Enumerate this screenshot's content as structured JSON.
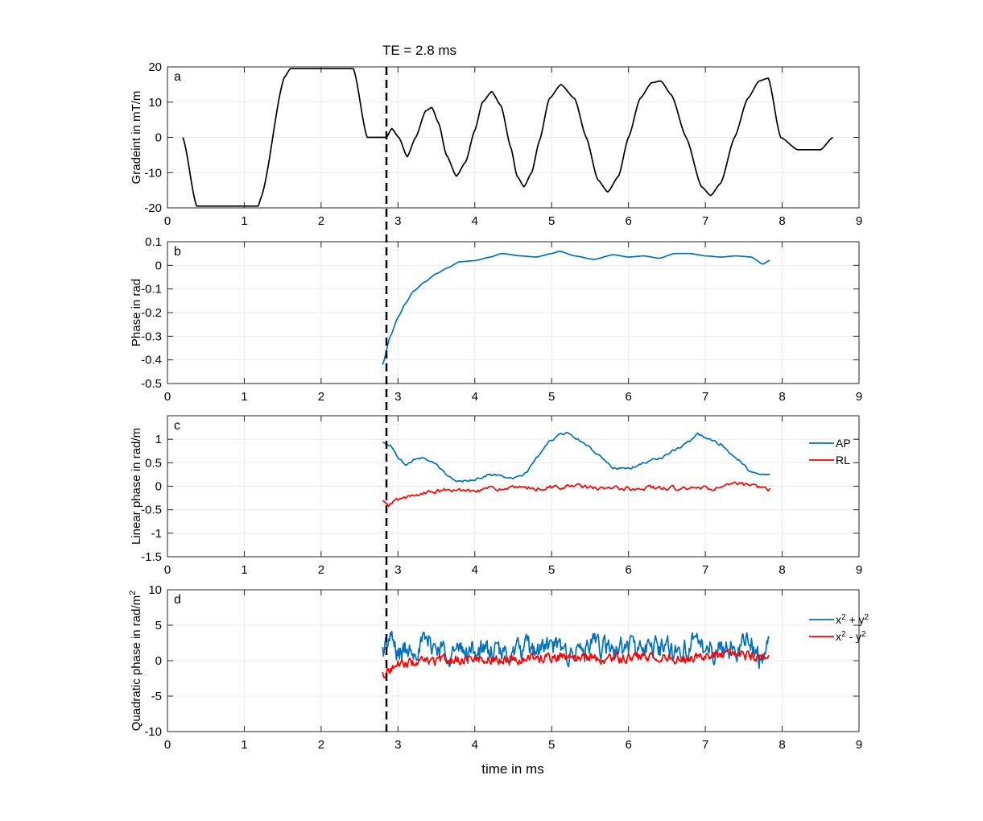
{
  "figure": {
    "te_annotation": "TE = 2.8 ms",
    "te_value": 2.85,
    "xlabel": "time in ms"
  },
  "chart_data": [
    {
      "type": "line",
      "panel": "a",
      "ylabel": "Gradeint in mT/m",
      "xlim": [
        0,
        9
      ],
      "ylim": [
        -20,
        20
      ],
      "xticks": [
        0,
        1,
        2,
        3,
        4,
        5,
        6,
        7,
        8,
        9
      ],
      "yticks": [
        -20,
        -10,
        0,
        10,
        20
      ],
      "grid": true,
      "series": [
        {
          "color": "#000000",
          "sampling": {
            "from": 0.2,
            "to": 8.66,
            "step": 0.01
          },
          "knots": [
            [
              0.2,
              0
            ],
            [
              0.38,
              -19.5
            ],
            [
              1.18,
              -19.5
            ],
            [
              1.22,
              -17
            ],
            [
              1.52,
              17
            ],
            [
              1.6,
              19.5
            ],
            [
              2.42,
              19.5
            ],
            [
              2.6,
              0
            ],
            [
              2.85,
              0
            ],
            [
              2.92,
              2.5
            ],
            [
              3.01,
              0
            ],
            [
              3.12,
              -5.5
            ],
            [
              3.23,
              0
            ],
            [
              3.36,
              7.5
            ],
            [
              3.44,
              8.5
            ],
            [
              3.53,
              4
            ],
            [
              3.63,
              -5
            ],
            [
              3.76,
              -11
            ],
            [
              3.88,
              -7
            ],
            [
              4.0,
              2
            ],
            [
              4.1,
              10
            ],
            [
              4.22,
              13
            ],
            [
              4.34,
              9
            ],
            [
              4.47,
              -3
            ],
            [
              4.55,
              -11
            ],
            [
              4.64,
              -14
            ],
            [
              4.74,
              -10
            ],
            [
              4.84,
              -1
            ],
            [
              4.97,
              11
            ],
            [
              5.12,
              15
            ],
            [
              5.3,
              11
            ],
            [
              5.45,
              0
            ],
            [
              5.6,
              -12
            ],
            [
              5.73,
              -15.5
            ],
            [
              5.87,
              -11
            ],
            [
              6.0,
              0
            ],
            [
              6.15,
              11
            ],
            [
              6.3,
              15.5
            ],
            [
              6.42,
              16
            ],
            [
              6.56,
              12
            ],
            [
              6.75,
              0
            ],
            [
              6.95,
              -14
            ],
            [
              7.07,
              -16.5
            ],
            [
              7.2,
              -13
            ],
            [
              7.38,
              0
            ],
            [
              7.55,
              11
            ],
            [
              7.7,
              16
            ],
            [
              7.82,
              16.8
            ],
            [
              7.98,
              0
            ],
            [
              8.2,
              -3.5
            ],
            [
              8.5,
              -3.5
            ],
            [
              8.66,
              0
            ]
          ]
        }
      ]
    },
    {
      "type": "line",
      "panel": "b",
      "ylabel": "Phase in rad",
      "xlim": [
        0,
        9
      ],
      "ylim": [
        -0.5,
        0.1
      ],
      "xticks": [
        0,
        1,
        2,
        3,
        4,
        5,
        6,
        7,
        8,
        9
      ],
      "yticks": [
        -0.5,
        -0.4,
        -0.3,
        -0.2,
        -0.1,
        0,
        0.1
      ],
      "grid": true,
      "series": [
        {
          "color": "#0072BD",
          "sampling": {
            "from": 2.8,
            "to": 7.83,
            "step": 0.02
          },
          "knots": [
            [
              2.8,
              -0.42
            ],
            [
              2.9,
              -0.3
            ],
            [
              3.0,
              -0.22
            ],
            [
              3.1,
              -0.16
            ],
            [
              3.2,
              -0.11
            ],
            [
              3.35,
              -0.07
            ],
            [
              3.5,
              -0.035
            ],
            [
              3.65,
              -0.01
            ],
            [
              3.8,
              0.015
            ],
            [
              4.0,
              0.02
            ],
            [
              4.2,
              0.035
            ],
            [
              4.35,
              0.05
            ],
            [
              4.6,
              0.04
            ],
            [
              4.8,
              0.035
            ],
            [
              5.0,
              0.05
            ],
            [
              5.1,
              0.06
            ],
            [
              5.3,
              0.04
            ],
            [
              5.55,
              0.025
            ],
            [
              5.8,
              0.045
            ],
            [
              6.0,
              0.035
            ],
            [
              6.2,
              0.04
            ],
            [
              6.4,
              0.03
            ],
            [
              6.6,
              0.05
            ],
            [
              6.8,
              0.05
            ],
            [
              7.0,
              0.04
            ],
            [
              7.2,
              0.035
            ],
            [
              7.4,
              0.04
            ],
            [
              7.6,
              0.035
            ],
            [
              7.75,
              0.005
            ],
            [
              7.83,
              0.02
            ]
          ]
        }
      ]
    },
    {
      "type": "line",
      "panel": "c",
      "ylabel": "Linear phase in rad/m",
      "xlim": [
        0,
        9
      ],
      "ylim": [
        -1.5,
        1.5
      ],
      "xticks": [
        0,
        1,
        2,
        3,
        4,
        5,
        6,
        7,
        8,
        9
      ],
      "yticks": [
        -1.5,
        -1,
        -0.5,
        0,
        0.5,
        1
      ],
      "grid": true,
      "legend_position": "right",
      "series": [
        {
          "name": "AP",
          "color": "#0072BD",
          "sampling": {
            "from": 2.8,
            "to": 7.83,
            "step": 0.02
          },
          "knots": [
            [
              2.8,
              0.92
            ],
            [
              2.9,
              0.88
            ],
            [
              3.0,
              0.62
            ],
            [
              3.1,
              0.48
            ],
            [
              3.25,
              0.62
            ],
            [
              3.35,
              0.6
            ],
            [
              3.5,
              0.45
            ],
            [
              3.65,
              0.2
            ],
            [
              3.8,
              0.1
            ],
            [
              4.0,
              0.15
            ],
            [
              4.2,
              0.25
            ],
            [
              4.4,
              0.2
            ],
            [
              4.5,
              0.15
            ],
            [
              4.65,
              0.25
            ],
            [
              4.8,
              0.6
            ],
            [
              5.0,
              1.0
            ],
            [
              5.2,
              1.15
            ],
            [
              5.4,
              0.95
            ],
            [
              5.6,
              0.7
            ],
            [
              5.8,
              0.4
            ],
            [
              6.0,
              0.35
            ],
            [
              6.2,
              0.5
            ],
            [
              6.4,
              0.6
            ],
            [
              6.6,
              0.75
            ],
            [
              6.8,
              0.95
            ],
            [
              6.9,
              1.1
            ],
            [
              7.05,
              1.0
            ],
            [
              7.2,
              0.9
            ],
            [
              7.4,
              0.6
            ],
            [
              7.6,
              0.3
            ],
            [
              7.83,
              0.25
            ]
          ],
          "noise": 0.025
        },
        {
          "name": "RL",
          "color": "#FF0000",
          "sampling": {
            "from": 2.8,
            "to": 7.83,
            "step": 0.02
          },
          "knots": [
            [
              2.8,
              -0.32
            ],
            [
              2.88,
              -0.45
            ],
            [
              2.95,
              -0.3
            ],
            [
              3.1,
              -0.25
            ],
            [
              3.3,
              -0.15
            ],
            [
              3.6,
              -0.1
            ],
            [
              3.9,
              -0.08
            ],
            [
              4.2,
              -0.05
            ],
            [
              4.5,
              -0.05
            ],
            [
              4.8,
              -0.05
            ],
            [
              5.0,
              -0.02
            ],
            [
              5.3,
              0.0
            ],
            [
              5.6,
              -0.05
            ],
            [
              6.0,
              -0.05
            ],
            [
              6.3,
              -0.03
            ],
            [
              6.6,
              -0.05
            ],
            [
              7.0,
              -0.05
            ],
            [
              7.2,
              -0.03
            ],
            [
              7.4,
              0.05
            ],
            [
              7.6,
              0.0
            ],
            [
              7.83,
              -0.05
            ]
          ],
          "noise": 0.04
        }
      ]
    },
    {
      "type": "line",
      "panel": "d",
      "ylabel": "Quadratic phase in rad/m",
      "ylabel_superscript": "2",
      "xlim": [
        0,
        9
      ],
      "ylim": [
        -10,
        10
      ],
      "xticks": [
        0,
        1,
        2,
        3,
        4,
        5,
        6,
        7,
        8,
        9
      ],
      "yticks": [
        -10,
        -5,
        0,
        5,
        10
      ],
      "grid": true,
      "legend_position": "right",
      "series": [
        {
          "name_parts": [
            "x",
            "2",
            " + y",
            "2"
          ],
          "color": "#0072BD",
          "sampling": {
            "from": 2.8,
            "to": 7.83,
            "step": 0.01
          },
          "knots": [
            [
              2.8,
              1.5
            ],
            [
              2.9,
              3.0
            ],
            [
              3.0,
              1.0
            ],
            [
              3.2,
              2.0
            ],
            [
              3.4,
              2.5
            ],
            [
              3.6,
              1.5
            ],
            [
              3.8,
              1.2
            ],
            [
              4.0,
              1.5
            ],
            [
              4.2,
              1.2
            ],
            [
              4.4,
              0.8
            ],
            [
              4.6,
              1.5
            ],
            [
              4.8,
              1.5
            ],
            [
              5.0,
              2.0
            ],
            [
              5.2,
              1.0
            ],
            [
              5.4,
              1.5
            ],
            [
              5.6,
              2.0
            ],
            [
              5.8,
              1.5
            ],
            [
              6.0,
              2.0
            ],
            [
              6.2,
              1.5
            ],
            [
              6.4,
              2.0
            ],
            [
              6.6,
              1.5
            ],
            [
              6.8,
              2.0
            ],
            [
              7.0,
              2.0
            ],
            [
              7.2,
              1.5
            ],
            [
              7.4,
              2.0
            ],
            [
              7.6,
              2.5
            ],
            [
              7.7,
              0.5
            ],
            [
              7.83,
              2.0
            ]
          ],
          "noise": 1.3
        },
        {
          "name_parts": [
            "x",
            "2",
            " - y",
            "2"
          ],
          "color": "#FF0000",
          "sampling": {
            "from": 2.8,
            "to": 7.83,
            "step": 0.01
          },
          "knots": [
            [
              2.8,
              -1.8
            ],
            [
              2.9,
              -1.2
            ],
            [
              3.0,
              -0.5
            ],
            [
              3.3,
              -0.2
            ],
            [
              3.6,
              0.0
            ],
            [
              3.9,
              0.3
            ],
            [
              4.2,
              0.2
            ],
            [
              4.5,
              0.3
            ],
            [
              4.8,
              0.3
            ],
            [
              5.1,
              0.5
            ],
            [
              5.4,
              0.5
            ],
            [
              5.7,
              0.3
            ],
            [
              6.0,
              0.4
            ],
            [
              6.3,
              0.5
            ],
            [
              6.6,
              0.3
            ],
            [
              6.9,
              0.5
            ],
            [
              7.2,
              0.6
            ],
            [
              7.4,
              1.0
            ],
            [
              7.6,
              0.5
            ],
            [
              7.83,
              0.8
            ]
          ],
          "noise": 0.55
        }
      ]
    }
  ]
}
